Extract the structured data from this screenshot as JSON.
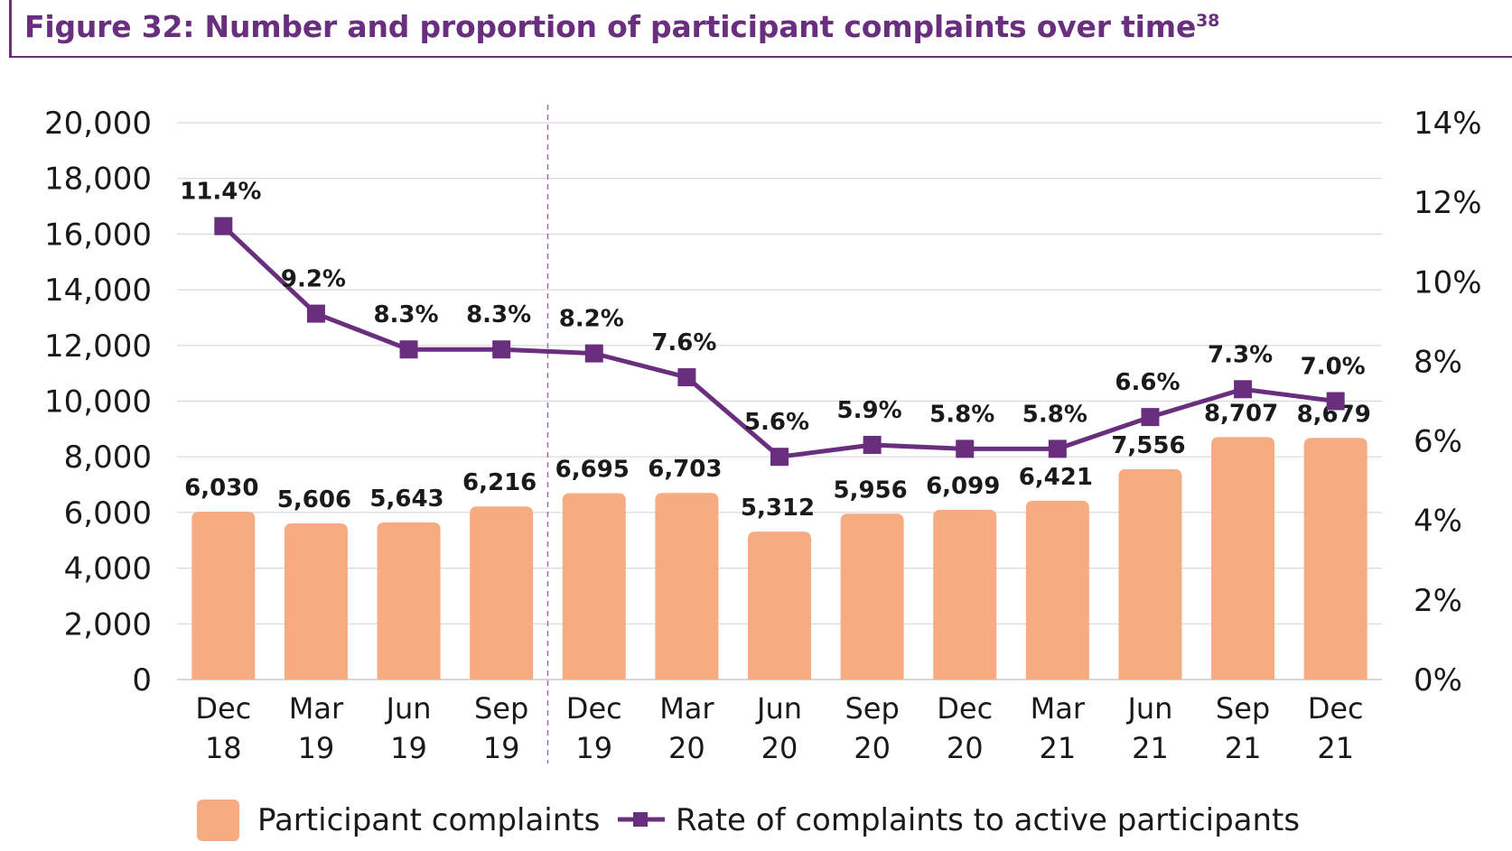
{
  "title": {
    "text": "Figure 32: Number and proportion of participant complaints over time",
    "footnote": "38"
  },
  "colors": {
    "bar": "#f7ab80",
    "line": "#6a2e7f",
    "grid": "#d9d9d9",
    "divider": "#9b6fae"
  },
  "legend": {
    "bar_label": "Participant complaints",
    "line_label": "Rate of complaints to active participants"
  },
  "chart_data": {
    "type": "bar",
    "categories": [
      [
        "Dec",
        "18"
      ],
      [
        "Mar",
        "19"
      ],
      [
        "Jun",
        "19"
      ],
      [
        "Sep",
        "19"
      ],
      [
        "Dec",
        "19"
      ],
      [
        "Mar",
        "20"
      ],
      [
        "Jun",
        "20"
      ],
      [
        "Sep",
        "20"
      ],
      [
        "Dec",
        "20"
      ],
      [
        "Mar",
        "21"
      ],
      [
        "Jun",
        "21"
      ],
      [
        "Sep",
        "21"
      ],
      [
        "Dec",
        "21"
      ]
    ],
    "series": [
      {
        "name": "Participant complaints",
        "type": "bar",
        "axis": "left",
        "values": [
          6030,
          5606,
          5643,
          6216,
          6695,
          6703,
          5312,
          5956,
          6099,
          6421,
          7556,
          8707,
          8679
        ],
        "labels": [
          "6,030",
          "5,606",
          "5,643",
          "6,216",
          "6,695",
          "6,703",
          "5,312",
          "5,956",
          "6,099",
          "6,421",
          "7,556",
          "8,707",
          "8,679"
        ]
      },
      {
        "name": "Rate of complaints to active participants",
        "type": "line",
        "axis": "right",
        "values": [
          11.4,
          9.2,
          8.3,
          8.3,
          8.2,
          7.6,
          5.6,
          5.9,
          5.8,
          5.8,
          6.6,
          7.3,
          7.0
        ],
        "labels": [
          "11.4%",
          "9.2%",
          "8.3%",
          "8.3%",
          "8.2%",
          "7.6%",
          "5.6%",
          "5.9%",
          "5.8%",
          "5.8%",
          "6.6%",
          "7.3%",
          "7.0%"
        ]
      }
    ],
    "ylim_left": [
      0,
      20000
    ],
    "yticks_left": [
      "0",
      "2,000",
      "4,000",
      "6,000",
      "8,000",
      "10,000",
      "12,000",
      "14,000",
      "16,000",
      "18,000",
      "20,000"
    ],
    "ylim_right": [
      0,
      14
    ],
    "yticks_right": [
      "0%",
      "2%",
      "4%",
      "6%",
      "8%",
      "10%",
      "12%",
      "14%"
    ],
    "grid": true,
    "divider_after_category": "Sep 19",
    "legend_position": "bottom"
  }
}
